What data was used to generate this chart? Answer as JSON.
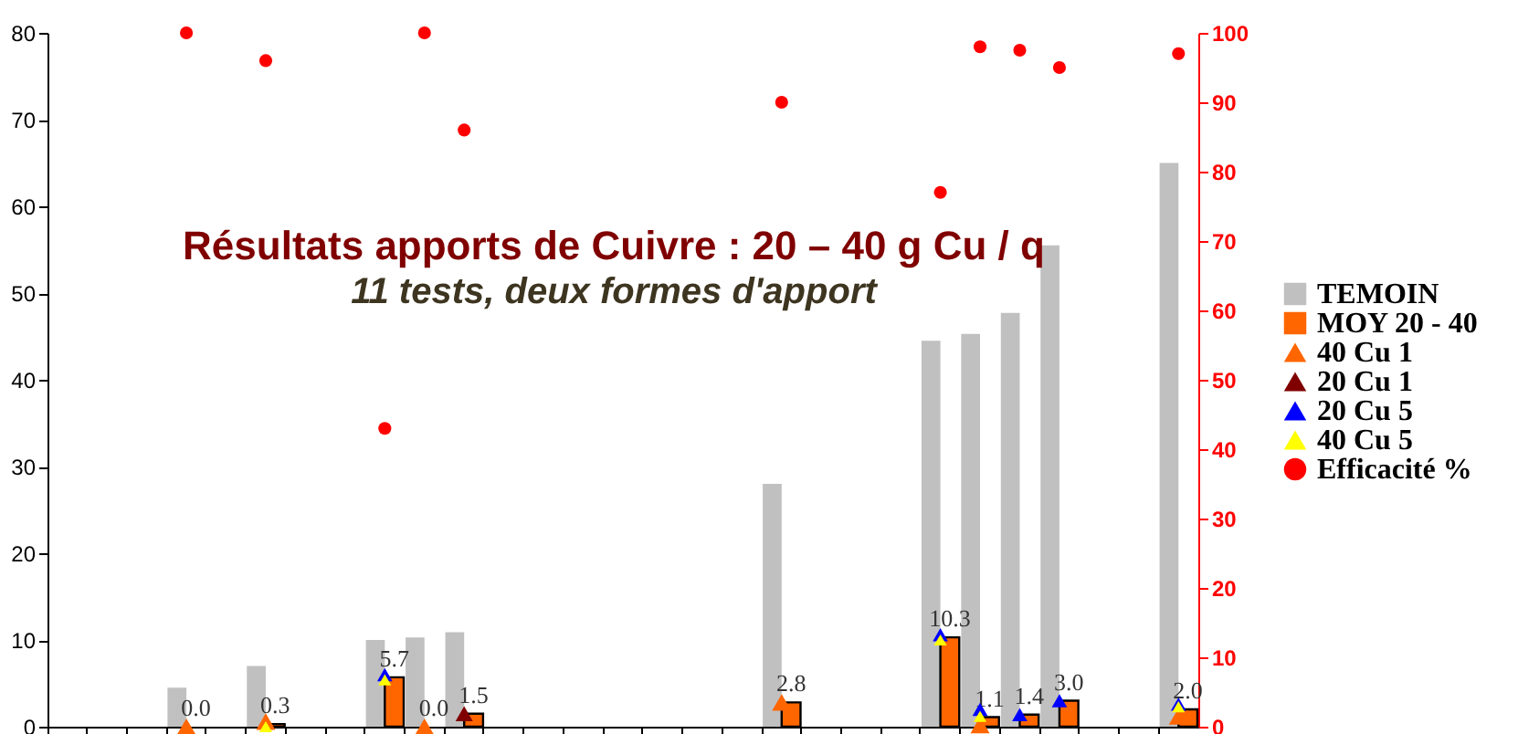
{
  "chart_data": {
    "type": "bar",
    "title": "Résultats apports de Cuivre : 20 – 40 g Cu / q",
    "subtitle": "11 tests, deux formes d'apport",
    "categories": [
      null,
      null,
      null,
      null,
      null,
      null,
      null,
      null,
      null,
      null,
      null,
      null,
      null,
      null,
      null,
      null,
      null,
      null,
      null,
      null,
      null,
      null,
      null,
      null,
      null,
      null,
      null,
      null,
      null
    ],
    "series": [
      {
        "name": "TEMOIN",
        "color": "#c0c0c0",
        "values": [
          null,
          null,
          null,
          4.5,
          null,
          7.0,
          null,
          null,
          10.0,
          10.3,
          10.9,
          null,
          null,
          null,
          null,
          null,
          null,
          null,
          28.0,
          null,
          null,
          null,
          44.5,
          45.3,
          47.7,
          55.5,
          null,
          null,
          65.0
        ]
      },
      {
        "name": "MOY 20 - 40",
        "color": "#ff6600",
        "values": [
          null,
          null,
          null,
          0.0,
          null,
          0.3,
          null,
          null,
          5.7,
          0.0,
          1.5,
          null,
          null,
          null,
          null,
          null,
          null,
          null,
          2.8,
          null,
          null,
          null,
          10.3,
          1.1,
          1.4,
          3.0,
          null,
          null,
          2.0
        ],
        "value_labels": [
          null,
          null,
          null,
          "0.0",
          null,
          "0.3",
          null,
          null,
          "5.7",
          "0.0",
          "1.5",
          null,
          null,
          null,
          null,
          null,
          null,
          null,
          "2.8",
          null,
          null,
          null,
          "10.3",
          "1.1",
          "1.4",
          "3.0",
          null,
          null,
          "2.0"
        ]
      },
      {
        "name": "40 Cu 1",
        "type": "scatter",
        "marker": "triangle",
        "color": "#ff6600",
        "values": [
          null,
          null,
          null,
          0.0,
          null,
          0.6,
          null,
          null,
          null,
          0.0,
          null,
          null,
          null,
          null,
          null,
          null,
          null,
          null,
          2.8,
          null,
          null,
          null,
          null,
          0.2,
          null,
          null,
          null,
          null,
          1.2
        ]
      },
      {
        "name": "20 Cu 1",
        "type": "scatter",
        "marker": "triangle",
        "color": "#800000",
        "values": [
          null,
          null,
          null,
          null,
          null,
          null,
          null,
          null,
          null,
          null,
          1.5,
          null,
          null,
          null,
          null,
          null,
          null,
          null,
          null,
          null,
          null,
          null,
          null,
          null,
          null,
          null,
          null,
          null,
          null
        ]
      },
      {
        "name": "20 Cu 5",
        "type": "scatter",
        "marker": "triangle",
        "color": "#0000ff",
        "values": [
          null,
          null,
          null,
          null,
          null,
          null,
          null,
          null,
          6.0,
          null,
          null,
          null,
          null,
          null,
          null,
          null,
          null,
          null,
          null,
          null,
          null,
          null,
          10.6,
          2.0,
          1.4,
          3.0,
          null,
          null,
          2.6
        ]
      },
      {
        "name": "40 Cu 5",
        "type": "scatter",
        "marker": "triangle",
        "color": "#ffff00",
        "values": [
          null,
          null,
          null,
          null,
          null,
          0.0,
          null,
          null,
          5.4,
          null,
          null,
          null,
          null,
          null,
          null,
          null,
          null,
          null,
          null,
          null,
          null,
          null,
          10.0,
          1.2,
          null,
          null,
          null,
          null,
          2.3
        ]
      },
      {
        "name": "Efficacité %",
        "type": "scatter",
        "marker": "circle",
        "axis": "y2",
        "color": "#ff0000",
        "values": [
          null,
          null,
          null,
          100,
          null,
          96,
          null,
          null,
          43,
          100,
          86,
          null,
          null,
          null,
          null,
          null,
          null,
          null,
          90,
          null,
          null,
          null,
          77,
          98,
          97.5,
          95,
          null,
          null,
          97
        ]
      }
    ],
    "ylim": [
      0,
      80
    ],
    "yticks": [
      0,
      10,
      20,
      30,
      40,
      50,
      60,
      70,
      80
    ],
    "y2lim": [
      0,
      100
    ],
    "y2ticks": [
      0,
      10,
      20,
      30,
      40,
      50,
      60,
      70,
      80,
      90,
      100
    ],
    "legend": "right",
    "grid": false
  }
}
